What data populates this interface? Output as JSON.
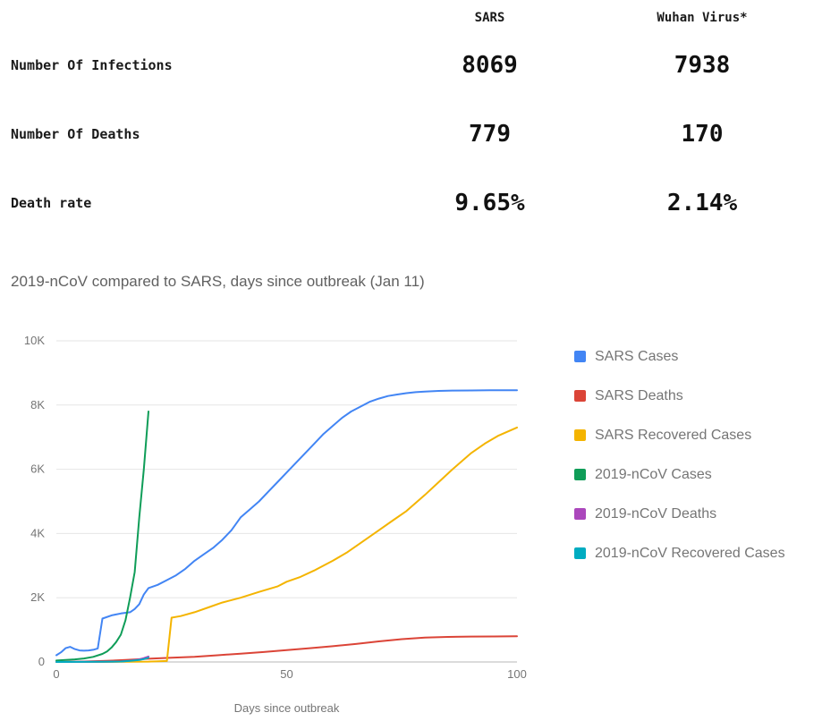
{
  "table": {
    "column_headers": [
      "SARS",
      "Wuhan Virus*"
    ],
    "rows": [
      {
        "label": "Number Of Infections",
        "values": [
          "8069",
          "7938"
        ]
      },
      {
        "label": "Number Of Deaths",
        "values": [
          "779",
          "170"
        ]
      },
      {
        "label": "Death rate",
        "values": [
          "9.65%",
          "2.14%"
        ]
      }
    ]
  },
  "chart_data": {
    "type": "line",
    "title": "2019-nCoV compared to SARS, days since outbreak (Jan 11)",
    "xlabel": "Days since outbreak",
    "ylabel": "",
    "xlim": [
      0,
      100
    ],
    "ylim": [
      0,
      10000
    ],
    "grid": true,
    "legend_position": "right",
    "x_ticks": [
      {
        "value": 0,
        "label": "0"
      },
      {
        "value": 50,
        "label": "50"
      },
      {
        "value": 100,
        "label": "100"
      }
    ],
    "y_ticks": [
      {
        "value": 0,
        "label": "0"
      },
      {
        "value": 2000,
        "label": "2K"
      },
      {
        "value": 4000,
        "label": "4K"
      },
      {
        "value": 6000,
        "label": "6K"
      },
      {
        "value": 8000,
        "label": "8K"
      },
      {
        "value": 10000,
        "label": "10K"
      }
    ],
    "colors": {
      "grid": "#e6e6e6",
      "baseline": "#b7b7b7",
      "text": "#757575"
    },
    "series": [
      {
        "name": "SARS Cases",
        "color": "#4285f4",
        "x": [
          0,
          1,
          2,
          3,
          4,
          5,
          6,
          7,
          8,
          9,
          10,
          12,
          14,
          16,
          17,
          18,
          19,
          20,
          22,
          24,
          26,
          28,
          30,
          32,
          34,
          36,
          38,
          40,
          42,
          44,
          46,
          48,
          50,
          52,
          54,
          56,
          58,
          60,
          62,
          64,
          66,
          68,
          70,
          72,
          74,
          76,
          78,
          80,
          83,
          86,
          90,
          94,
          100
        ],
        "y": [
          210,
          300,
          430,
          470,
          400,
          360,
          350,
          360,
          380,
          420,
          1350,
          1450,
          1510,
          1550,
          1650,
          1800,
          2100,
          2300,
          2400,
          2550,
          2700,
          2900,
          3150,
          3350,
          3550,
          3800,
          4100,
          4500,
          4750,
          5000,
          5300,
          5600,
          5900,
          6200,
          6500,
          6800,
          7100,
          7350,
          7600,
          7800,
          7950,
          8100,
          8200,
          8280,
          8330,
          8370,
          8400,
          8420,
          8440,
          8450,
          8455,
          8460,
          8460
        ]
      },
      {
        "name": "SARS Deaths",
        "color": "#db4437",
        "x": [
          0,
          5,
          10,
          15,
          20,
          25,
          30,
          35,
          40,
          45,
          50,
          55,
          60,
          65,
          70,
          75,
          80,
          85,
          90,
          95,
          100
        ],
        "y": [
          0,
          10,
          30,
          60,
          100,
          130,
          160,
          210,
          260,
          310,
          370,
          430,
          490,
          560,
          640,
          710,
          760,
          780,
          790,
          795,
          800
        ]
      },
      {
        "name": "SARS Recovered Cases",
        "color": "#f4b400",
        "x": [
          0,
          10,
          20,
          24,
          25,
          27,
          30,
          33,
          36,
          40,
          44,
          48,
          50,
          53,
          56,
          60,
          63,
          66,
          70,
          73,
          76,
          80,
          83,
          86,
          90,
          93,
          96,
          100
        ],
        "y": [
          0,
          0,
          10,
          30,
          1380,
          1430,
          1550,
          1700,
          1850,
          2000,
          2180,
          2350,
          2500,
          2650,
          2850,
          3150,
          3400,
          3700,
          4100,
          4400,
          4700,
          5200,
          5600,
          6000,
          6500,
          6800,
          7050,
          7300
        ]
      },
      {
        "name": "2019-nCoV Cases",
        "color": "#0f9d58",
        "x": [
          0,
          2,
          4,
          6,
          8,
          10,
          11,
          12,
          13,
          14,
          15,
          16,
          17,
          18,
          19,
          20
        ],
        "y": [
          45,
          60,
          80,
          110,
          160,
          250,
          330,
          450,
          620,
          850,
          1300,
          2000,
          2800,
          4500,
          6000,
          7800
        ]
      },
      {
        "name": "2019-nCoV Deaths",
        "color": "#ab47bc",
        "x": [
          0,
          10,
          14,
          16,
          18,
          19,
          20
        ],
        "y": [
          0,
          5,
          15,
          40,
          80,
          120,
          170
        ]
      },
      {
        "name": "2019-nCoV Recovered Cases",
        "color": "#00acc1",
        "x": [
          0,
          10,
          14,
          16,
          18,
          19,
          20
        ],
        "y": [
          0,
          5,
          15,
          35,
          60,
          90,
          130
        ]
      }
    ]
  }
}
